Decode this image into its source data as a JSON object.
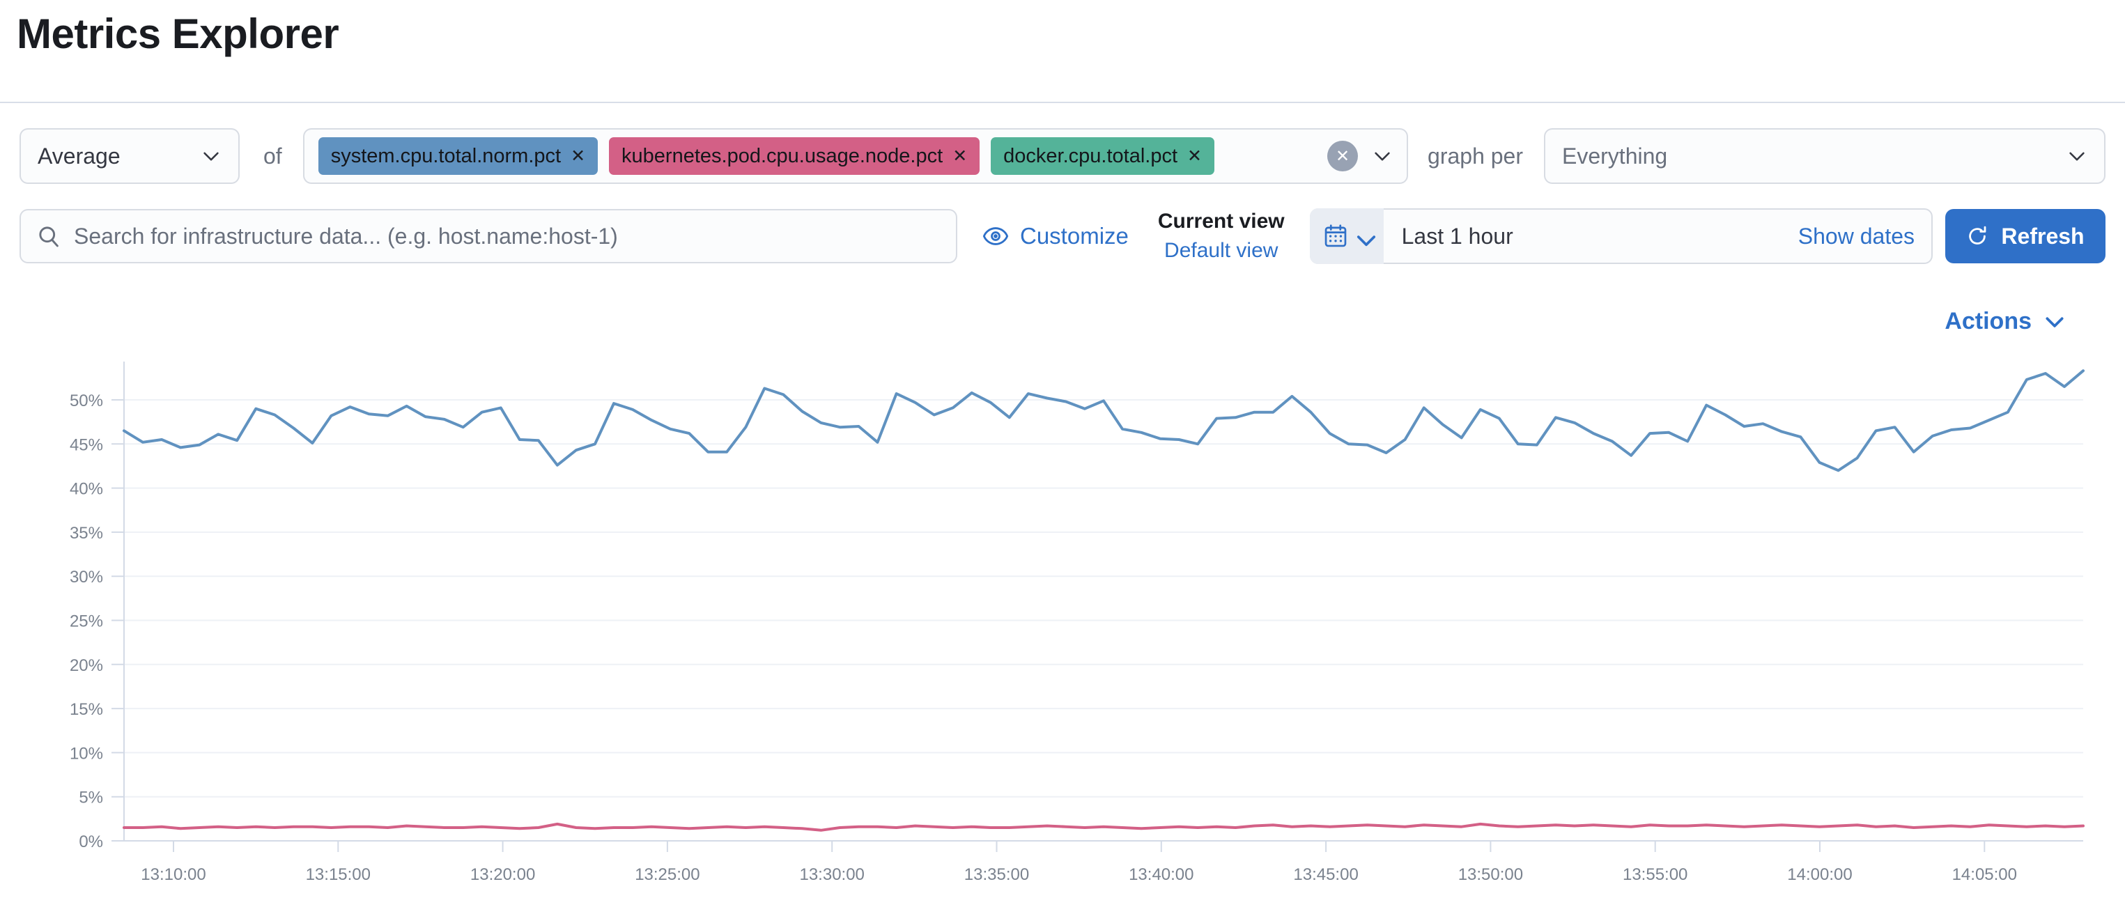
{
  "page": {
    "title": "Metrics Explorer"
  },
  "icons": {
    "remove": "✕",
    "clear": "✕"
  },
  "toolbar": {
    "aggregation": {
      "value": "Average"
    },
    "of_label": "of",
    "metrics": [
      {
        "label": "system.cpu.total.norm.pct",
        "color": "#6092C0"
      },
      {
        "label": "kubernetes.pod.cpu.usage.node.pct",
        "color": "#D36086"
      },
      {
        "label": "docker.cpu.total.pct",
        "color": "#54B399"
      }
    ],
    "graph_per_label": "graph per",
    "group_by": {
      "value": "Everything"
    }
  },
  "search": {
    "placeholder": "Search for infrastructure data... (e.g. host.name:host-1)"
  },
  "view_controls": {
    "customize_label": "Customize",
    "current_view_label": "Current view",
    "view_name": "Default view"
  },
  "datepicker": {
    "range_label": "Last 1 hour",
    "show_dates_label": "Show dates",
    "refresh_label": "Refresh"
  },
  "actions": {
    "label": "Actions"
  },
  "chart_data": {
    "type": "line",
    "title": "",
    "xlabel": "",
    "ylabel": "",
    "ylim": [
      0,
      53.5
    ],
    "grid": true,
    "legend_position": "none",
    "y_ticks": [
      "0%",
      "5%",
      "10%",
      "15%",
      "20%",
      "25%",
      "30%",
      "35%",
      "40%",
      "45%",
      "50%"
    ],
    "x_ticks": [
      "13:10:00",
      "13:15:00",
      "13:20:00",
      "13:25:00",
      "13:30:00",
      "13:35:00",
      "13:40:00",
      "13:45:00",
      "13:50:00",
      "13:55:00",
      "14:00:00",
      "14:05:00"
    ],
    "x_range": [
      "13:08:30",
      "14:08:10"
    ],
    "unit": "%",
    "series": [
      {
        "name": "system.cpu.total.norm.pct (Average)",
        "color": "#6092C0",
        "values": [
          46.5,
          45.2,
          45.5,
          44.6,
          44.9,
          46.1,
          45.4,
          49.0,
          48.3,
          46.8,
          45.1,
          48.2,
          49.2,
          48.4,
          48.2,
          49.3,
          48.1,
          47.8,
          46.9,
          48.6,
          49.1,
          45.5,
          45.4,
          42.6,
          44.3,
          45.0,
          49.6,
          48.9,
          47.7,
          46.7,
          46.2,
          44.1,
          44.1,
          46.9,
          51.3,
          50.6,
          48.7,
          47.4,
          46.9,
          47.0,
          45.2,
          50.7,
          49.7,
          48.3,
          49.1,
          50.8,
          49.7,
          48.0,
          50.7,
          50.2,
          49.8,
          49.0,
          49.9,
          46.7,
          46.3,
          45.6,
          45.5,
          45.0,
          47.9,
          48.0,
          48.6,
          48.6,
          50.4,
          48.6,
          46.2,
          45.0,
          44.9,
          44.0,
          45.5,
          49.1,
          47.2,
          45.7,
          48.9,
          47.9,
          45.0,
          44.9,
          48.0,
          47.4,
          46.2,
          45.3,
          43.7,
          46.2,
          46.3,
          45.3,
          49.4,
          48.3,
          47.0,
          47.3,
          46.4,
          45.8,
          42.9,
          42.0,
          43.4,
          46.5,
          46.9,
          44.1,
          45.9,
          46.6,
          46.8,
          47.7,
          48.6,
          52.3,
          53.0,
          51.5,
          53.3
        ]
      },
      {
        "name": "kubernetes.pod.cpu.usage.node.pct (Average)",
        "color": "#D36086",
        "values": [
          1.5,
          1.5,
          1.6,
          1.4,
          1.5,
          1.6,
          1.5,
          1.6,
          1.5,
          1.6,
          1.6,
          1.5,
          1.6,
          1.6,
          1.5,
          1.7,
          1.6,
          1.5,
          1.5,
          1.6,
          1.5,
          1.4,
          1.5,
          1.9,
          1.5,
          1.4,
          1.5,
          1.5,
          1.6,
          1.5,
          1.4,
          1.5,
          1.6,
          1.5,
          1.6,
          1.5,
          1.4,
          1.2,
          1.5,
          1.6,
          1.6,
          1.5,
          1.7,
          1.6,
          1.5,
          1.6,
          1.5,
          1.5,
          1.6,
          1.7,
          1.6,
          1.5,
          1.6,
          1.5,
          1.4,
          1.5,
          1.6,
          1.5,
          1.6,
          1.5,
          1.7,
          1.8,
          1.6,
          1.7,
          1.6,
          1.7,
          1.8,
          1.7,
          1.6,
          1.8,
          1.7,
          1.6,
          1.9,
          1.7,
          1.6,
          1.7,
          1.8,
          1.7,
          1.8,
          1.7,
          1.6,
          1.8,
          1.7,
          1.7,
          1.8,
          1.7,
          1.6,
          1.7,
          1.8,
          1.7,
          1.6,
          1.7,
          1.8,
          1.6,
          1.7,
          1.5,
          1.6,
          1.7,
          1.6,
          1.8,
          1.7,
          1.6,
          1.7,
          1.6,
          1.7
        ]
      }
    ]
  }
}
